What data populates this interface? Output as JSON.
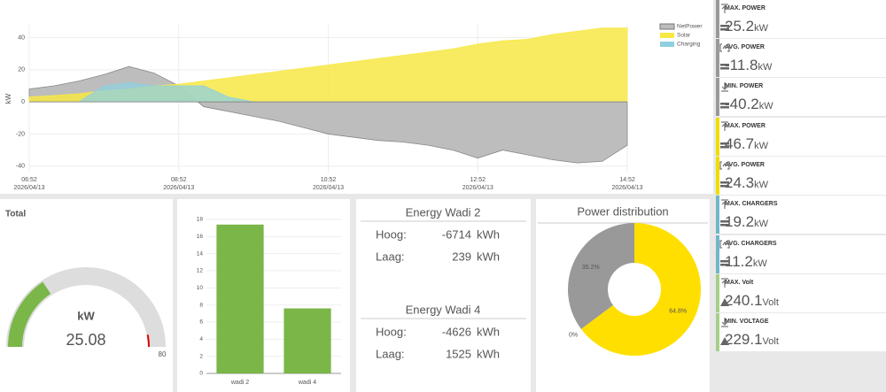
{
  "chart_data": [
    {
      "type": "area",
      "ylabel": "kW",
      "x": [
        "2026/04/13 06:52",
        "2026/04/13 07:12",
        "2026/04/13 07:32",
        "2026/04/13 07:52",
        "2026/04/13 08:12",
        "2026/04/13 08:32",
        "2026/04/13 08:52",
        "2026/04/13 09:12",
        "2026/04/13 09:32",
        "2026/04/13 09:52",
        "2026/04/13 10:12",
        "2026/04/13 10:32",
        "2026/04/13 10:52",
        "2026/04/13 11:12",
        "2026/04/13 11:32",
        "2026/04/13 11:52",
        "2026/04/13 12:12",
        "2026/04/13 12:32",
        "2026/04/13 12:52",
        "2026/04/13 13:12",
        "2026/04/13 13:32",
        "2026/04/13 13:52",
        "2026/04/13 14:12",
        "2026/04/13 14:32",
        "2026/04/13 14:52"
      ],
      "series": [
        {
          "name": "NetPower",
          "color": "#bdbdbd",
          "values": [
            8,
            10,
            13,
            17,
            22,
            18,
            10,
            -3,
            -6,
            -9,
            -12,
            -16,
            -20,
            -22,
            -24,
            -25,
            -27,
            -30,
            -35,
            -30,
            -33,
            -36,
            -38,
            -37,
            -27
          ]
        },
        {
          "name": "Solar",
          "color": "#f7e845",
          "values": [
            3,
            4,
            5,
            7,
            8,
            10,
            11,
            13,
            15,
            17,
            19,
            21,
            23,
            25,
            27,
            29,
            31,
            33,
            36,
            38,
            39,
            42,
            44,
            46,
            46
          ]
        },
        {
          "name": "Charging",
          "color": "#8fd0e0",
          "values": [
            0,
            0,
            0,
            10,
            12,
            10,
            10,
            10,
            3,
            0,
            0,
            0,
            0,
            0,
            0,
            0,
            0,
            0,
            0,
            0,
            0,
            0,
            0,
            0,
            0
          ]
        }
      ],
      "xlim": [
        "2026/04/13 06:52",
        "2026/04/13 14:52"
      ],
      "xticks": [
        {
          "value": "2026/04/13 06:52",
          "label": [
            "06:52",
            "2026/04/13"
          ]
        },
        {
          "value": "2026/04/13 08:52",
          "label": [
            "08:52",
            "2026/04/13"
          ]
        },
        {
          "value": "2026/04/13 10:52",
          "label": [
            "10:52",
            "2026/04/13"
          ]
        },
        {
          "value": "2026/04/13 12:52",
          "label": [
            "12:52",
            "2026/04/13"
          ]
        },
        {
          "value": "2026/04/13 14:52",
          "label": [
            "14:52",
            "2026/04/13"
          ]
        }
      ],
      "ylim": [
        -44,
        48
      ],
      "yticks": [
        -40,
        -20,
        0,
        20,
        40
      ],
      "grid": true,
      "legend": "top-right"
    },
    {
      "type": "gauge",
      "title": "Total",
      "unit": "kW",
      "value": 25.08,
      "ylim": [
        0,
        80
      ],
      "threshold": 75,
      "color": "#7ab648"
    },
    {
      "type": "bar",
      "categories": [
        "wadi 2",
        "wadi 4"
      ],
      "values": [
        17.4,
        7.6
      ],
      "color": "#7ab648",
      "ylim": [
        0,
        18
      ],
      "yticks": [
        0,
        2,
        4,
        6,
        8,
        10,
        12,
        14,
        16,
        18
      ],
      "grid": true
    },
    {
      "type": "pie",
      "title": "Power distribution",
      "values": [
        64.8,
        0,
        35.2
      ],
      "value_labels": [
        "64.8%",
        "0%",
        "35.2%"
      ],
      "colors": [
        "#ffdf00",
        "#7ab648",
        "#999999"
      ]
    }
  ],
  "energy": [
    {
      "title": "Energy Wadi 2",
      "rows": [
        {
          "label": "Hoog:",
          "value": -6714,
          "unit": "kWh"
        },
        {
          "label": "Laag:",
          "value": 239,
          "unit": "kWh"
        }
      ]
    },
    {
      "title": "Energy Wadi 4",
      "rows": [
        {
          "label": "Hoog:",
          "value": -4626,
          "unit": "kWh"
        },
        {
          "label": "Laag:",
          "value": 1525,
          "unit": "kWh"
        }
      ]
    }
  ],
  "stats": [
    {
      "label": "MAX. POWER",
      "value": 25.2,
      "unit": "kW"
    },
    {
      "label": "AVG. POWER",
      "value": -11.8,
      "unit": "kW"
    },
    {
      "label": "MIN. POWER",
      "value": -40.2,
      "unit": "kW"
    },
    {
      "label": "MAX. POWER",
      "value": 46.7,
      "unit": "kW"
    },
    {
      "label": "AVG. POWER",
      "value": 24.3,
      "unit": "kW"
    },
    {
      "label": "MAX. CHARGERS",
      "value": 19.2,
      "unit": "kW"
    },
    {
      "label": "AVG. CHARGERS",
      "value": 11.2,
      "unit": "kW"
    },
    {
      "label": "MAX. Volt",
      "value": 240.1,
      "unit": "Volt"
    },
    {
      "label": "MIN. VOLTAGE",
      "value": 229.1,
      "unit": "Volt"
    }
  ]
}
